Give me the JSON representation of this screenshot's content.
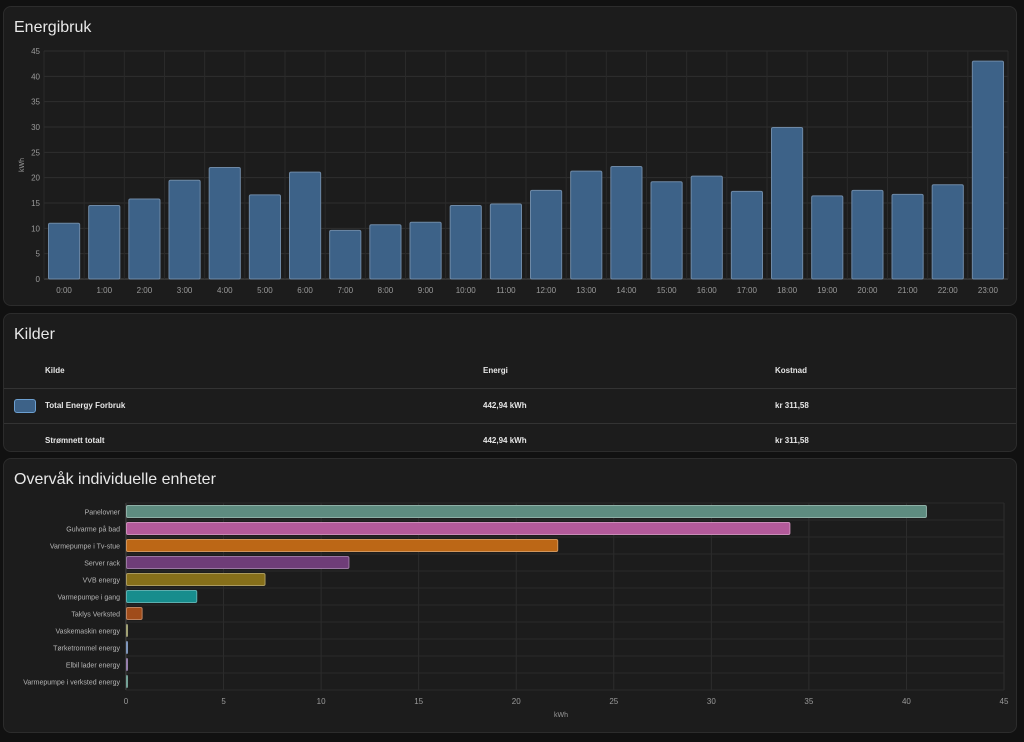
{
  "energy_card": {
    "title": "Energibruk"
  },
  "sources_card": {
    "title": "Kilder",
    "headers": {
      "source": "Kilde",
      "energy": "Energi",
      "cost": "Kostnad"
    },
    "rows": [
      {
        "source": "Total Energy Forbruk",
        "energy": "442,94 kWh",
        "cost": "kr 311,58",
        "color": "#3d6288"
      }
    ],
    "total": {
      "source": "Strømnett totalt",
      "energy": "442,94 kWh",
      "cost": "kr 311,58"
    }
  },
  "devices_card": {
    "title": "Overvåk individuelle enheter"
  },
  "chart_data": [
    {
      "type": "bar",
      "title": "Energibruk",
      "ylabel": "kWh",
      "xlabel": "",
      "ylim": [
        0,
        45
      ],
      "yticks": [
        0,
        5,
        10,
        15,
        20,
        25,
        30,
        35,
        40,
        45
      ],
      "categories": [
        "0:00",
        "1:00",
        "2:00",
        "3:00",
        "4:00",
        "5:00",
        "6:00",
        "7:00",
        "8:00",
        "9:00",
        "10:00",
        "11:00",
        "12:00",
        "13:00",
        "14:00",
        "15:00",
        "16:00",
        "17:00",
        "18:00",
        "19:00",
        "20:00",
        "21:00",
        "22:00",
        "23:00"
      ],
      "values": [
        11,
        14.5,
        15.8,
        19.5,
        22,
        16.6,
        21.1,
        9.6,
        10.7,
        11.2,
        14.5,
        14.8,
        17.5,
        21.3,
        22.2,
        19.2,
        20.3,
        17.3,
        29.9,
        16.4,
        17.5,
        16.7,
        18.6,
        43
      ],
      "color": "#3d6288",
      "grid": true
    },
    {
      "type": "bar",
      "orientation": "horizontal",
      "title": "Overvåk individuelle enheter",
      "xlabel": "kWh",
      "xlim": [
        0,
        45
      ],
      "xticks": [
        0,
        5,
        10,
        15,
        20,
        25,
        30,
        35,
        40,
        45
      ],
      "categories": [
        "Panelovner",
        "Gulvarme på bad",
        "Varmepumpe i Tv-stue",
        "Server rack",
        "VVB energy",
        "Varmepumpe i gang",
        "Taklys Verksted",
        "Vaskemaskin energy",
        "Tørketrommel energy",
        "Elbil lader energy",
        "Varmepumpe i verksted energy"
      ],
      "values": [
        41,
        34,
        22.1,
        11.4,
        7.1,
        3.6,
        0.8,
        0.05,
        0.05,
        0.02,
        0.02
      ],
      "colors": [
        "#5e8c80",
        "#b35a9a",
        "#bc6716",
        "#6f3d78",
        "#866f1a",
        "#178d8d",
        "#a04c1a",
        "#7a7a3a",
        "#4a6aa0",
        "#6a4a8a",
        "#3a7a6a"
      ],
      "grid": true
    }
  ]
}
